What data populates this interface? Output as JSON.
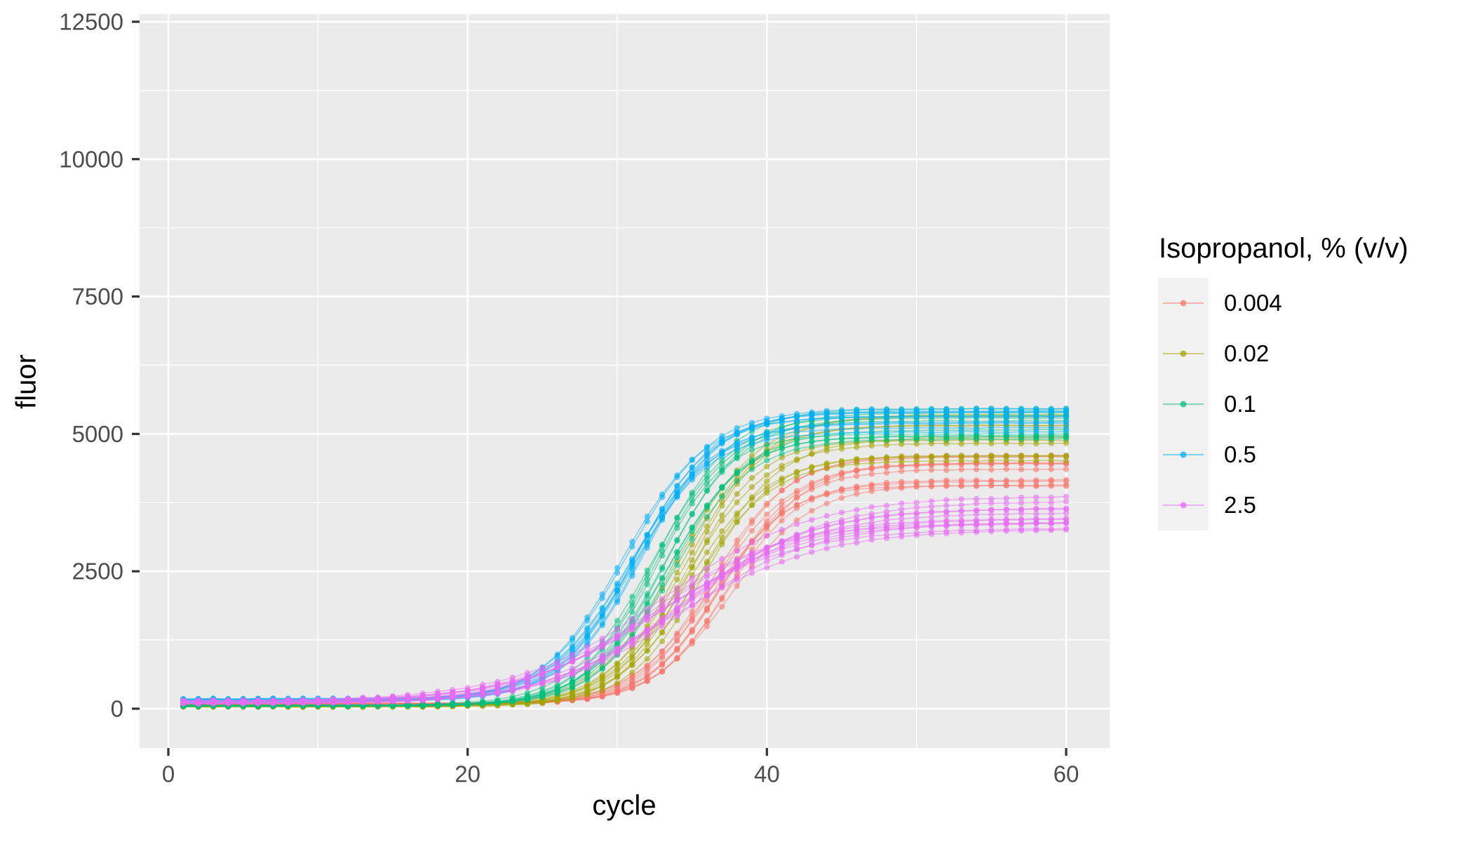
{
  "chart_data": {
    "type": "line",
    "title": "",
    "xlabel": "cycle",
    "ylabel": "fluor",
    "legend_title": "Isopropanol, % (v/v)",
    "legend_position": "right",
    "grid": true,
    "x_ticks": [
      0,
      20,
      40,
      60
    ],
    "x_minor_ticks": [
      10,
      30,
      50
    ],
    "y_ticks": [
      0,
      2500,
      5000,
      7500,
      10000,
      12500
    ],
    "y_minor_ticks": [
      1250,
      3750,
      6250,
      8750,
      11250
    ],
    "xlim": [
      -2,
      62.9
    ],
    "ylim": [
      -715,
      12620
    ],
    "cycle_min": 1,
    "cycle_max": 60,
    "panel_background": "#EBEBEB",
    "grid_color": "#FFFFFF",
    "legend_key_background": "#F2F2F2",
    "tick_mark_color": "#333333",
    "tick_label_color": "#4D4D4D",
    "series": [
      {
        "name": "0.004",
        "color": "#F8766D",
        "replicates": 10,
        "seed": 11,
        "baseline": 85,
        "baseline_jitter": 15,
        "amplitude_min": 3900,
        "amplitude_max": 4560,
        "midpoint": 37.0,
        "midpoint_jitter": 0.8,
        "slope": 0.4
      },
      {
        "name": "0.02",
        "color": "#A3A500",
        "replicates": 10,
        "seed": 22,
        "baseline": 42,
        "baseline_jitter": 12,
        "amplitude_min": 4250,
        "amplitude_max": 5450,
        "midpoint": 34.9,
        "midpoint_jitter": 0.9,
        "slope": 0.4
      },
      {
        "name": "0.1",
        "color": "#00BF7D",
        "replicates": 10,
        "seed": 33,
        "baseline": 55,
        "baseline_jitter": 15,
        "amplitude_min": 4850,
        "amplitude_max": 5450,
        "midpoint": 33.0,
        "midpoint_jitter": 0.8,
        "slope": 0.4
      },
      {
        "name": "0.5",
        "color": "#00B0F6",
        "replicates": 10,
        "seed": 44,
        "baseline": 160,
        "baseline_jitter": 35,
        "amplitude_min": 4900,
        "amplitude_max": 5400,
        "midpoint": 31.0,
        "midpoint_jitter": 0.8,
        "slope": 0.38
      },
      {
        "name": "2.5",
        "color": "#E76BF3",
        "replicates": 12,
        "seed": 55,
        "baseline": 125,
        "baseline_jitter": 35,
        "amplitude_min": 3100,
        "amplitude_max": 3750,
        "midpoint": 33.4,
        "midpoint_jitter": 1.4,
        "slope": 0.22
      }
    ],
    "point_noise": 8
  }
}
